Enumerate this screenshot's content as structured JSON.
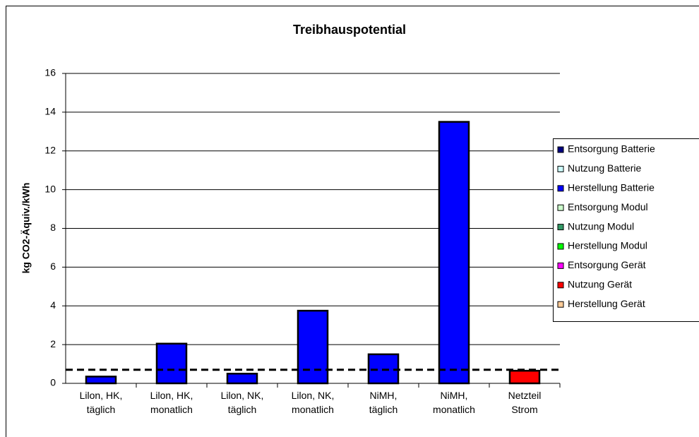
{
  "chart_data": {
    "type": "stacked_bar",
    "title": "Treibhauspotential",
    "y_label": "kg CO2-Äquiv./kWh",
    "categories": [
      "Lilon, HK,\ntäglich",
      "Lilon, HK,\nmonatlich",
      "Lilon, NK,\ntäglich",
      "Lilon, NK,\nmonatlich",
      "NiMH,\ntäglich",
      "NiMH,\nmonatlich",
      "Netzteil\nStrom"
    ],
    "series": [
      {
        "name": "Entsorgung Batterie",
        "color": "#000080",
        "values": [
          0,
          0,
          0,
          0,
          0,
          0,
          0
        ]
      },
      {
        "name": "Nutzung Batterie",
        "color": "#ccffff",
        "values": [
          0,
          0,
          0,
          0,
          0,
          0,
          0
        ]
      },
      {
        "name": "Herstellung Batterie",
        "color": "#0000ff",
        "values": [
          0.35,
          2.05,
          0.5,
          3.75,
          1.5,
          13.5,
          0
        ]
      },
      {
        "name": "Entsorgung Modul",
        "color": "#ccffcc",
        "values": [
          0,
          0,
          0,
          0,
          0,
          0,
          0
        ]
      },
      {
        "name": "Nutzung Modul",
        "color": "#339966",
        "values": [
          0,
          0,
          0,
          0,
          0,
          0,
          0
        ]
      },
      {
        "name": "Herstellung Modul",
        "color": "#00ff00",
        "values": [
          0,
          0,
          0,
          0,
          0,
          0,
          0
        ]
      },
      {
        "name": "Entsorgung Gerät",
        "color": "#ff00ff",
        "values": [
          0,
          0,
          0,
          0,
          0,
          0,
          0
        ]
      },
      {
        "name": "Nutzung Gerät",
        "color": "#ff0000",
        "values": [
          0,
          0,
          0,
          0,
          0,
          0,
          0.65
        ]
      },
      {
        "name": "Herstellung Gerät",
        "color": "#ffcc99",
        "values": [
          0,
          0,
          0,
          0,
          0,
          0,
          0
        ]
      }
    ],
    "reference_line": 0.7,
    "ylim": [
      0,
      16
    ],
    "yticks": [
      0,
      2,
      4,
      6,
      8,
      10,
      12,
      14,
      16
    ],
    "grid": true,
    "legend": "right"
  }
}
